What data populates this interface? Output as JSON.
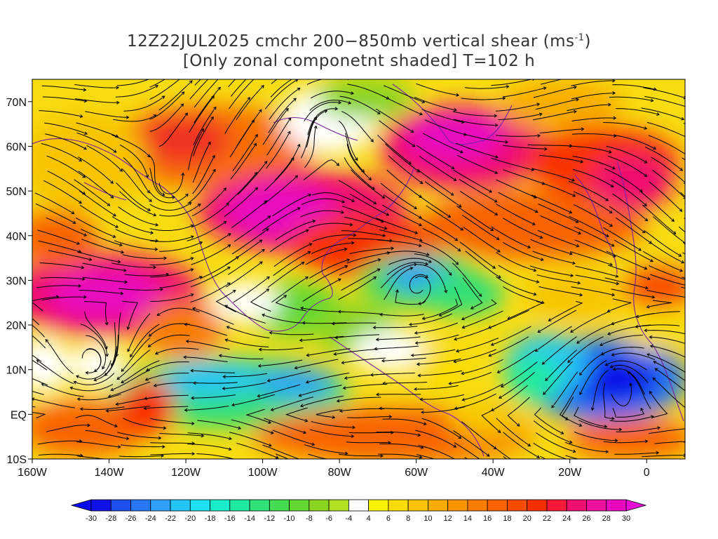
{
  "title": {
    "line1_prefix": "12Z22JUL2025 cmchr 200−850mb vertical shear (ms",
    "line1_sup": "-1",
    "line1_suffix": ")",
    "line2": "[Only zonal componetnt shaded] T=102 h"
  },
  "map": {
    "projection": "cylindrical",
    "lon_range": [
      -160,
      10
    ],
    "lat_range": [
      -10,
      75
    ],
    "lat_ticks": [
      {
        "value": 70,
        "label": "70N"
      },
      {
        "value": 60,
        "label": "60N"
      },
      {
        "value": 50,
        "label": "50N"
      },
      {
        "value": 40,
        "label": "40N"
      },
      {
        "value": 30,
        "label": "30N"
      },
      {
        "value": 20,
        "label": "20N"
      },
      {
        "value": 10,
        "label": "10N"
      },
      {
        "value": 0,
        "label": "EQ"
      },
      {
        "value": -10,
        "label": "10S"
      }
    ],
    "lon_ticks": [
      {
        "value": -160,
        "label": "160W"
      },
      {
        "value": -140,
        "label": "140W"
      },
      {
        "value": -120,
        "label": "120W"
      },
      {
        "value": -100,
        "label": "100W"
      },
      {
        "value": -80,
        "label": "80W"
      },
      {
        "value": -60,
        "label": "60W"
      },
      {
        "value": -40,
        "label": "40W"
      },
      {
        "value": -20,
        "label": "20W"
      },
      {
        "value": 0,
        "label": "0"
      }
    ],
    "shaded_field": "zonal component of 200-850mb vertical shear",
    "overlay": "streamlines of shear vector",
    "coast_color": "#7a1fa2"
  },
  "colorbar": {
    "labels": [
      "-30",
      "-28",
      "-26",
      "-24",
      "-22",
      "-20",
      "-18",
      "-16",
      "-14",
      "-12",
      "-10",
      "-8",
      "-6",
      "-4",
      "4",
      "6",
      "8",
      "10",
      "12",
      "14",
      "16",
      "18",
      "20",
      "22",
      "24",
      "26",
      "28",
      "30"
    ],
    "colors": [
      "#1010e8",
      "#1e50f0",
      "#2878f5",
      "#2fa0f8",
      "#26c4f5",
      "#1ee0f0",
      "#18ecc8",
      "#20eaa0",
      "#30e078",
      "#44dc50",
      "#64d830",
      "#8ad420",
      "#b0e020",
      "#ffffff",
      "#f8f400",
      "#f8dc00",
      "#f8c400",
      "#f8ac00",
      "#f89400",
      "#f87c00",
      "#f86400",
      "#f84c00",
      "#f83000",
      "#f81838",
      "#f01070",
      "#f010a0",
      "#e808c0"
    ],
    "low_arrow_color": "#0a08f0",
    "high_arrow_color": "#e808d8"
  }
}
